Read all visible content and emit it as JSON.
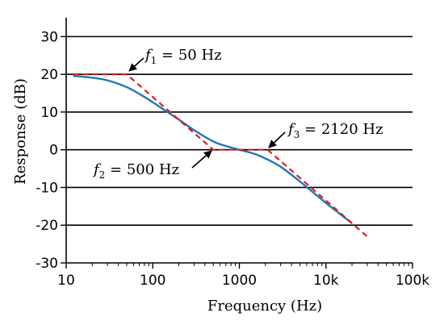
{
  "chart_data": {
    "type": "line",
    "xlabel": "Frequency (Hz)",
    "ylabel": "Response (dB)",
    "xscale": "log",
    "xlim": [
      10,
      100000
    ],
    "ylim": [
      -30,
      35
    ],
    "x_ticks": [
      10,
      100,
      1000,
      10000,
      100000
    ],
    "x_tick_labels": [
      "10",
      "100",
      "1000",
      "10k",
      "100k"
    ],
    "y_ticks": [
      -30,
      -20,
      -10,
      0,
      10,
      20,
      30
    ],
    "y_tick_labels": [
      "-30",
      "-20",
      "-10",
      "0",
      "10",
      "20",
      "30"
    ],
    "grid": "horizontal",
    "series": [
      {
        "style": "solid",
        "color": "#1f77b4",
        "x": [
          12,
          20,
          30,
          50,
          70,
          100,
          150,
          200,
          300,
          500,
          700,
          1000,
          1500,
          2120,
          3000,
          5000,
          10000,
          20000
        ],
        "y": [
          19.6,
          19.1,
          18.4,
          16.6,
          14.8,
          12.6,
          9.9,
          8.0,
          5.2,
          2.2,
          1.0,
          0.0,
          -1.1,
          -2.6,
          -4.5,
          -8.4,
          -14.1,
          -19.5
        ]
      },
      {
        "style": "dashed",
        "color": "#e31a1c",
        "x": [
          12,
          50,
          500,
          2120,
          30000
        ],
        "y": [
          20,
          20,
          0,
          0,
          -23
        ]
      }
    ],
    "annotations": [
      {
        "sym": "f",
        "sub": "1",
        "rest": "= 50 Hz",
        "x": 50,
        "y": 20
      },
      {
        "sym": "f",
        "sub": "2",
        "rest": "= 500 Hz",
        "x": 500,
        "y": 0
      },
      {
        "sym": "f",
        "sub": "3",
        "rest": "= 2120 Hz",
        "x": 2120,
        "y": 0
      }
    ]
  },
  "colors": {
    "axis": "#000000",
    "grid": "#000000"
  }
}
